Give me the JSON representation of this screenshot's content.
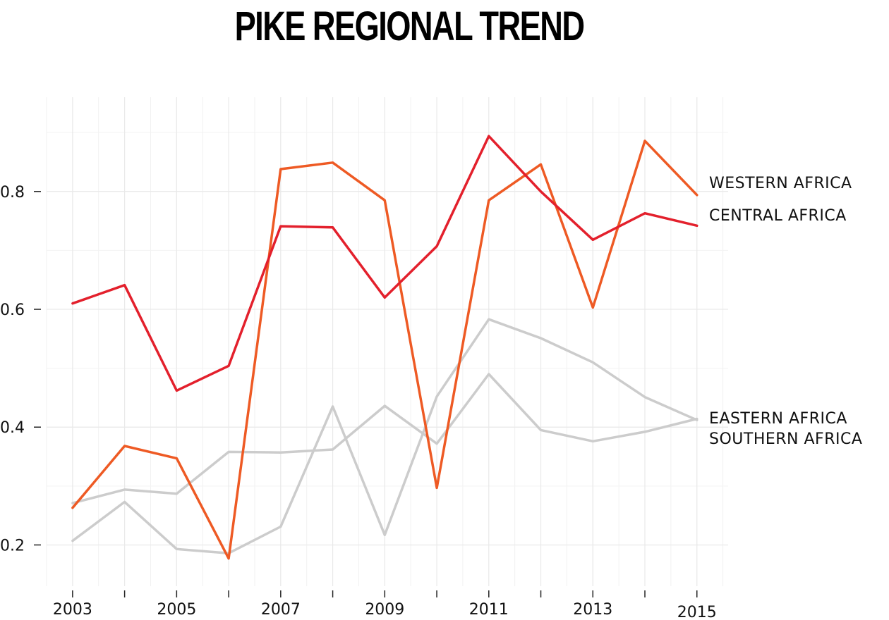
{
  "chart_data": {
    "type": "line",
    "title": "PIKE REGIONAL TREND",
    "xlabel": "",
    "ylabel": "",
    "x": [
      2003,
      2004,
      2005,
      2006,
      2007,
      2008,
      2009,
      2010,
      2011,
      2012,
      2013,
      2014,
      2015
    ],
    "x_tick_labels": [
      "2003",
      "2005",
      "2007",
      "2009",
      "2011",
      "2013",
      "2015"
    ],
    "y_tick_labels": [
      "0.2",
      "0.4",
      "0.6",
      "0.8"
    ],
    "y_ticks": [
      0.2,
      0.4,
      0.6,
      0.8
    ],
    "xlim": [
      2002.5,
      2015.6
    ],
    "ylim": [
      0.13,
      0.96
    ],
    "grid": true,
    "legend": "direct labels at right end of lines",
    "series": [
      {
        "name": "WESTERN AFRICA",
        "color": "#ee5a24",
        "values": [
          0.263,
          0.368,
          0.347,
          0.177,
          0.838,
          0.849,
          0.785,
          0.297,
          0.785,
          0.846,
          0.603,
          0.886,
          0.794
        ]
      },
      {
        "name": "CENTRAL AFRICA",
        "color": "#e3202c",
        "values": [
          0.61,
          0.641,
          0.462,
          0.504,
          0.741,
          0.739,
          0.62,
          0.707,
          0.894,
          0.8,
          0.718,
          0.763,
          0.742
        ]
      },
      {
        "name": "EASTERN AFRICA",
        "color": "#cccccc",
        "values": [
          0.271,
          0.294,
          0.287,
          0.358,
          0.357,
          0.362,
          0.436,
          0.372,
          0.49,
          0.395,
          0.376,
          0.392,
          0.414
        ]
      },
      {
        "name": "SOUTHERN AFRICA",
        "color": "#cccccc",
        "values": [
          0.207,
          0.273,
          0.193,
          0.186,
          0.231,
          0.435,
          0.217,
          0.452,
          0.583,
          0.551,
          0.51,
          0.451,
          0.412
        ]
      }
    ]
  }
}
